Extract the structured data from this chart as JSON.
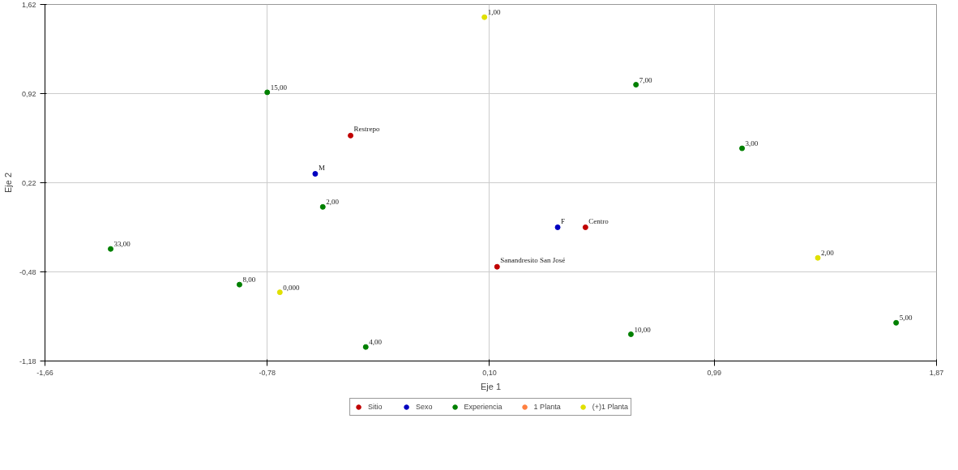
{
  "chart_data": {
    "type": "scatter",
    "xlabel": "Eje 1",
    "ylabel": "Eje 2",
    "xlim": [
      -1.66,
      1.87
    ],
    "ylim": [
      -1.18,
      1.62
    ],
    "xticks": [
      {
        "value": -1.66,
        "label": "-1,66"
      },
      {
        "value": -0.78,
        "label": "-0,78"
      },
      {
        "value": 0.1,
        "label": "0,10"
      },
      {
        "value": 0.99,
        "label": "0,99"
      },
      {
        "value": 1.87,
        "label": "1,87"
      }
    ],
    "yticks": [
      {
        "value": -1.18,
        "label": "-1,18"
      },
      {
        "value": -0.48,
        "label": "-0,48"
      },
      {
        "value": 0.22,
        "label": "0,22"
      },
      {
        "value": 0.92,
        "label": "0,92"
      },
      {
        "value": 1.62,
        "label": "1,62"
      }
    ],
    "grid": true,
    "legend": "bottom",
    "marker": "circle",
    "series": [
      {
        "name": "Sitio",
        "color": "#c00000",
        "x": [
          -0.45,
          0.48,
          0.13
        ],
        "values": [
          0.59,
          -0.13,
          -0.44
        ]
      },
      {
        "name": "Sexo",
        "color": "#0000c0",
        "x": [
          -0.59,
          0.37
        ],
        "values": [
          0.29,
          -0.13
        ]
      },
      {
        "name": "Experiencia",
        "color": "#008000",
        "x": [
          -0.78,
          0.68,
          1.1,
          -0.56,
          -1.4,
          -0.89,
          -0.39,
          0.66,
          1.71
        ],
        "values": [
          0.93,
          0.99,
          0.49,
          0.03,
          -0.3,
          -0.58,
          -1.07,
          -0.97,
          -0.88
        ]
      },
      {
        "name": "1 Planta",
        "color": "#ff8040"
      },
      {
        "name": "(+)1 Planta",
        "color": "#e0e000",
        "x": [
          0.08,
          1.4,
          -0.73
        ],
        "values": [
          1.52,
          -0.37,
          -0.64
        ]
      }
    ],
    "annotations": [
      {
        "text": "Restrepo",
        "x": -0.45,
        "y": 0.59
      },
      {
        "text": "Centro",
        "x": 0.48,
        "y": -0.13
      },
      {
        "text": "Sanandresito San José",
        "x": 0.13,
        "y": -0.44
      },
      {
        "text": "M",
        "x": -0.59,
        "y": 0.29
      },
      {
        "text": "F",
        "x": 0.37,
        "y": -0.13
      },
      {
        "text": "15,00",
        "x": -0.78,
        "y": 0.93
      },
      {
        "text": "7,00",
        "x": 0.68,
        "y": 0.99
      },
      {
        "text": "3,00",
        "x": 1.1,
        "y": 0.49
      },
      {
        "text": "2,00",
        "x": -0.56,
        "y": 0.03
      },
      {
        "text": "33,00",
        "x": -1.4,
        "y": -0.3
      },
      {
        "text": "8,00",
        "x": -0.89,
        "y": -0.58
      },
      {
        "text": "4,00",
        "x": -0.39,
        "y": -1.07
      },
      {
        "text": "10,00",
        "x": 0.66,
        "y": -0.97
      },
      {
        "text": "5,00",
        "x": 1.71,
        "y": -0.88
      },
      {
        "text": "1,00",
        "x": 0.08,
        "y": 1.52
      },
      {
        "text": "2,00",
        "x": 1.4,
        "y": -0.37
      },
      {
        "text": "0,000",
        "x": -0.73,
        "y": -0.64
      }
    ]
  }
}
